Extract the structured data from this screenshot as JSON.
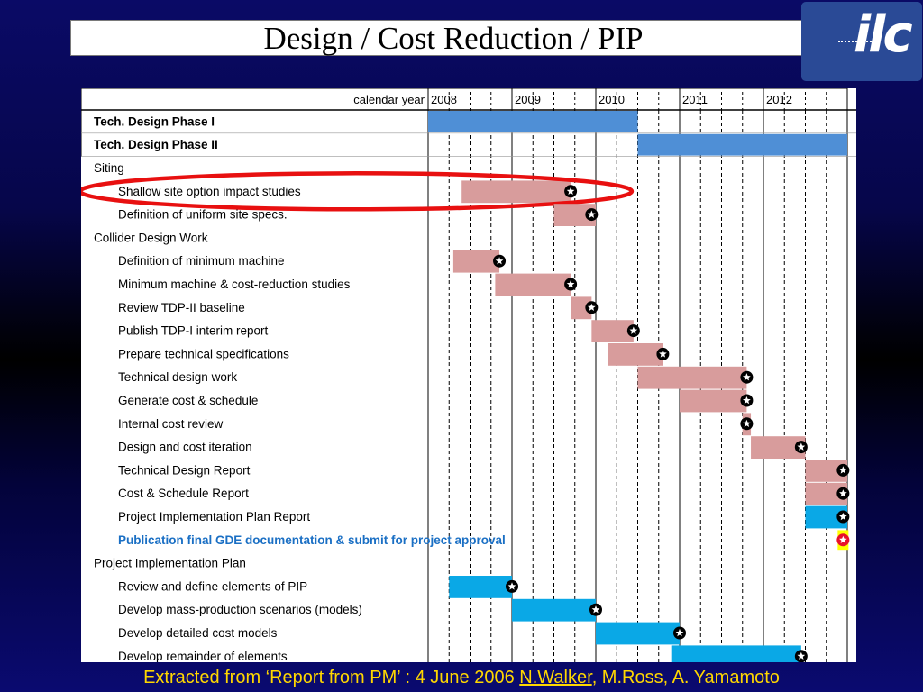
{
  "slide": {
    "title": "Design / Cost Reduction / PIP"
  },
  "logo": {
    "text": "ilc",
    "icon": "ilc-logo-icon"
  },
  "footer": {
    "prefix": "Extracted from ‘Report from PM’ : 4 June 2006 ",
    "author_link": "N.Walker",
    "suffix": ", M.Ross, A. Yamamoto"
  },
  "colors": {
    "background": "#0a0a66",
    "phase_bar": "#4f8fd6",
    "work_bar": "#d89c9c",
    "pip_bar": "#0aa8e6",
    "milestone": "#000000",
    "final_milestone": "#e8102a",
    "final_highlight": "#ffff00",
    "highlight_ring": "#e81010",
    "highlight_text": "#1a6fc4"
  },
  "chart_data": {
    "type": "gantt",
    "header_label": "calendar year",
    "years": [
      "2008",
      "2009",
      "2010",
      "2011",
      "2012"
    ],
    "x_range": [
      2008,
      2013
    ],
    "x_unit": "year",
    "grid": "quarterly dashed lines, solid lines at year boundaries",
    "tasks": [
      {
        "label": "Tech. Design Phase I",
        "bold": true,
        "indent": false,
        "start": 2008.0,
        "end": 2010.5,
        "color": "phase",
        "milestone": null
      },
      {
        "label": "Tech. Design Phase II",
        "bold": true,
        "indent": false,
        "start": 2010.5,
        "end": 2013.0,
        "color": "phase",
        "milestone": null
      },
      {
        "label": "Siting",
        "indent": false,
        "header": true,
        "start": null,
        "end": null,
        "milestone": null
      },
      {
        "label": "Shallow site option impact studies",
        "indent": true,
        "start": 2008.4,
        "end": 2009.7,
        "color": "work",
        "milestone": 2009.7,
        "circled": true
      },
      {
        "label": "Definition of uniform site specs.",
        "indent": true,
        "start": 2009.5,
        "end": 2010.0,
        "color": "work",
        "milestone": 2009.95
      },
      {
        "label": "Collider Design Work",
        "indent": false,
        "header": true,
        "start": null,
        "end": null,
        "milestone": null
      },
      {
        "label": "Definition of minimum machine",
        "indent": true,
        "start": 2008.3,
        "end": 2008.85,
        "color": "work",
        "milestone": 2008.85
      },
      {
        "label": "Minimum machine & cost-reduction studies",
        "indent": true,
        "start": 2008.8,
        "end": 2009.7,
        "color": "work",
        "milestone": 2009.7
      },
      {
        "label": "Review TDP-II baseline",
        "indent": true,
        "start": 2009.7,
        "end": 2009.95,
        "color": "work",
        "milestone": 2009.95
      },
      {
        "label": "Publish TDP-I interim report",
        "indent": true,
        "start": 2009.95,
        "end": 2010.45,
        "color": "work",
        "milestone": 2010.45
      },
      {
        "label": "Prepare technical specifications",
        "indent": true,
        "start": 2010.15,
        "end": 2010.8,
        "color": "work",
        "milestone": 2010.8
      },
      {
        "label": "Technical design work",
        "indent": true,
        "start": 2010.5,
        "end": 2011.8,
        "color": "work",
        "milestone": 2011.8
      },
      {
        "label": "Generate cost & schedule",
        "indent": true,
        "start": 2011.0,
        "end": 2011.8,
        "color": "work",
        "milestone": 2011.8
      },
      {
        "label": "Internal cost review",
        "indent": true,
        "start": 2011.75,
        "end": 2011.85,
        "color": "work",
        "milestone": 2011.8
      },
      {
        "label": "Design and cost iteration",
        "indent": true,
        "start": 2011.85,
        "end": 2012.5,
        "color": "work",
        "milestone": 2012.45
      },
      {
        "label": "Technical Design Report",
        "indent": true,
        "start": 2012.5,
        "end": 2013.0,
        "color": "work",
        "milestone": 2012.95
      },
      {
        "label": "Cost & Schedule Report",
        "indent": true,
        "start": 2012.5,
        "end": 2013.0,
        "color": "work",
        "milestone": 2012.95
      },
      {
        "label": "Project Implementation Plan Report",
        "indent": true,
        "start": 2012.5,
        "end": 2013.0,
        "color": "pip",
        "milestone": 2012.95
      },
      {
        "label": "Publication final GDE documentation & submit for project approval",
        "indent": true,
        "highlight": true,
        "start": null,
        "end": null,
        "milestone": 2012.95,
        "final": true
      },
      {
        "label": "Project Implementation Plan",
        "indent": false,
        "header": true,
        "start": null,
        "end": null,
        "milestone": null
      },
      {
        "label": "Review and define elements of PIP",
        "indent": true,
        "start": 2008.25,
        "end": 2009.0,
        "color": "pip",
        "milestone": 2009.0
      },
      {
        "label": "Develop mass-production scenarios (models)",
        "indent": true,
        "start": 2009.0,
        "end": 2010.0,
        "color": "pip",
        "milestone": 2010.0
      },
      {
        "label": "Develop detailed cost models",
        "indent": true,
        "start": 2010.0,
        "end": 2011.0,
        "color": "pip",
        "milestone": 2011.0
      },
      {
        "label": "Develop remainder of elements",
        "indent": true,
        "start": 2010.9,
        "end": 2012.45,
        "color": "pip",
        "milestone": 2012.45
      }
    ]
  }
}
